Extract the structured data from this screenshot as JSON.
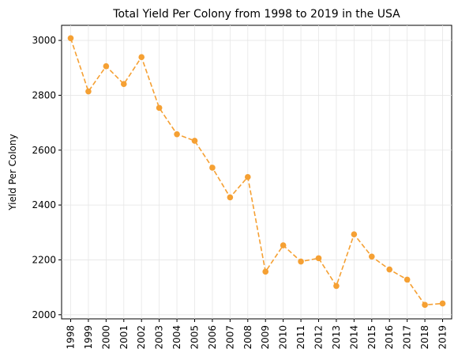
{
  "chart_data": {
    "type": "line",
    "title": "Total Yield Per Colony from 1998 to 2019 in the USA",
    "xlabel": "",
    "ylabel": "Yield Per Colony",
    "x": [
      "1998",
      "1999",
      "2000",
      "2001",
      "2002",
      "2003",
      "2004",
      "2005",
      "2006",
      "2007",
      "2008",
      "2009",
      "2010",
      "2011",
      "2012",
      "2013",
      "2014",
      "2015",
      "2016",
      "2017",
      "2018",
      "2019"
    ],
    "series": [
      {
        "values": [
          3008,
          2814,
          2906,
          2841,
          2939,
          2754,
          2658,
          2634,
          2536,
          2428,
          2502,
          2157,
          2253,
          2194,
          2206,
          2105,
          2293,
          2212,
          2165,
          2128,
          2036,
          2041
        ],
        "color": "#f5a033",
        "line_style": "dashed",
        "marker": "circle"
      }
    ],
    "ylim": [
      1985,
      3055
    ],
    "yticks": [
      2000,
      2200,
      2400,
      2600,
      2800,
      3000
    ],
    "grid": true
  }
}
